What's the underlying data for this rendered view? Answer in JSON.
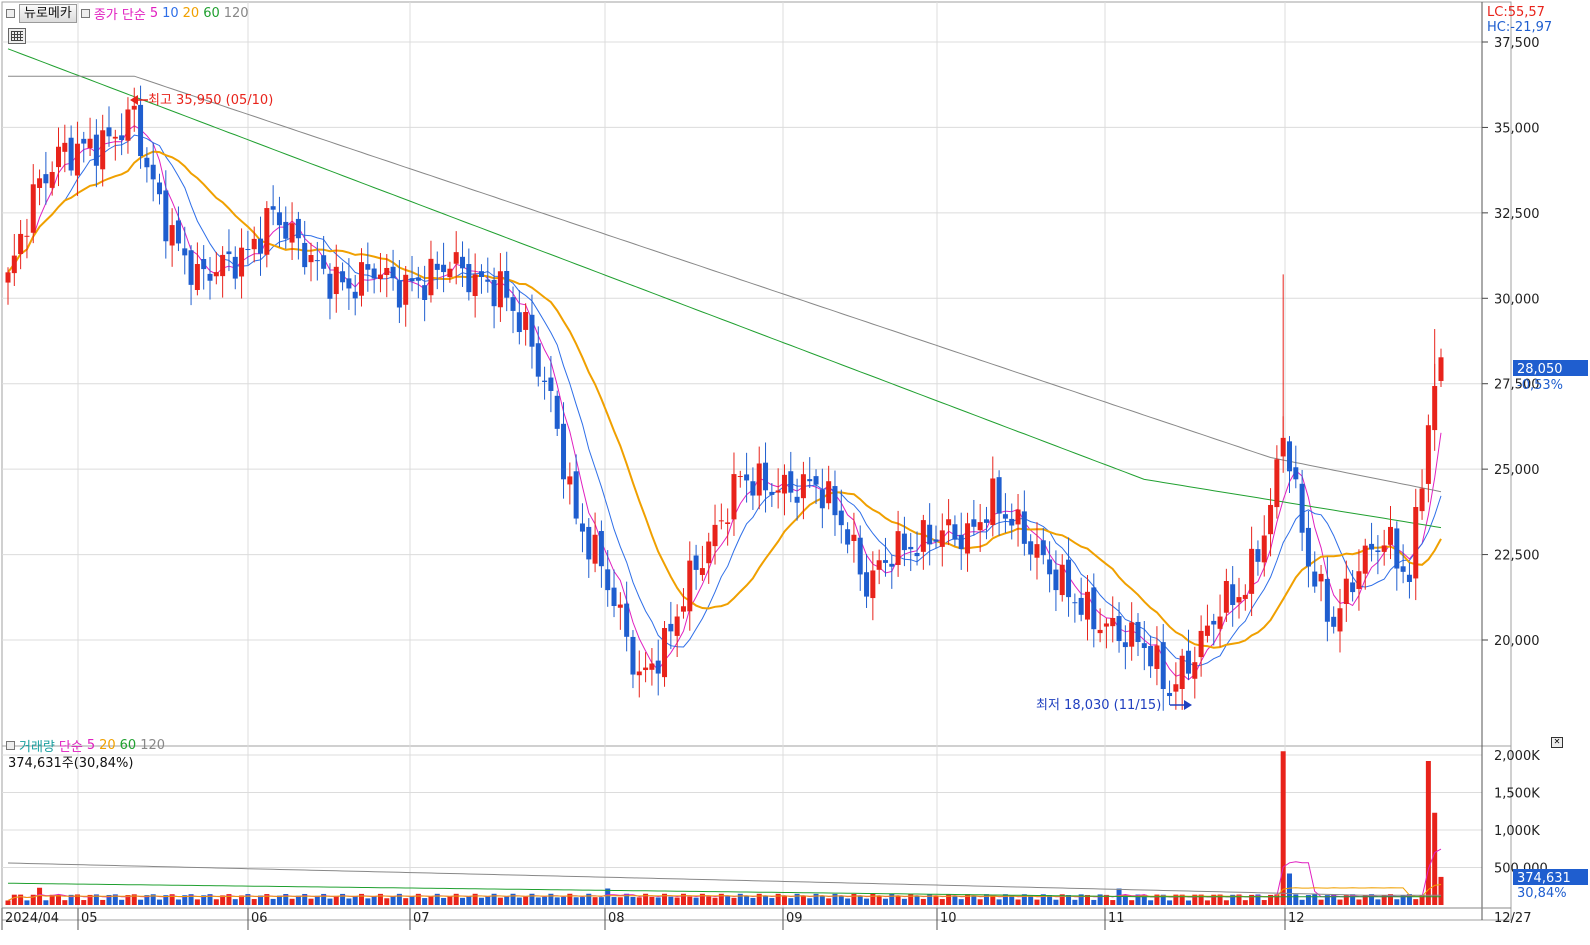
{
  "toolbar": {
    "stock_name": "뉴로메카",
    "indicator": "종가 단순",
    "ma_periods": [
      "5",
      "10",
      "20",
      "60",
      "120"
    ],
    "lc": "LC:55,57",
    "hc": "HC:-21,97"
  },
  "volume_panel": {
    "title": "거래량",
    "indicator": "단순",
    "ma_periods": [
      "5",
      "20",
      "60",
      "120"
    ],
    "info": "374,631주(30,84%)"
  },
  "annotations": {
    "high": "최고 35,950 (05/10)",
    "low": "최저 18,030 (11/15)"
  },
  "price_axis": {
    "ticks": [
      "37,500",
      "35,000",
      "32,500",
      "30,000",
      "27,500",
      "25,000",
      "22,500",
      "20,000"
    ],
    "current": "28,050",
    "change": "-0,53%"
  },
  "volume_axis": {
    "ticks": [
      "2,000K",
      "1,500K",
      "1,000K",
      "500,000"
    ],
    "current": "374,631",
    "ratio": "30,84%"
  },
  "date_axis": {
    "labels": [
      "2024/04",
      "05",
      "06",
      "07",
      "08",
      "09",
      "10",
      "11",
      "12"
    ],
    "end": "12/27"
  },
  "colors": {
    "up": "#e8231b",
    "down": "#1f5ecf",
    "ma5": "#e020c0",
    "ma10": "#2f6fe8",
    "ma20": "#f0a000",
    "ma60": "#20a030",
    "ma120": "#888888"
  },
  "chart_data": {
    "type": "candlestick",
    "period": "2024/04 – 12/27",
    "y_range": [
      17500,
      38500
    ],
    "monthly_closes": [
      {
        "month": "2024/04",
        "close": 31500
      },
      {
        "month": "05",
        "close": 34500
      },
      {
        "month": "06",
        "close": 31200
      },
      {
        "month": "07",
        "close": 30400
      },
      {
        "month": "08",
        "close": 21300
      },
      {
        "month": "09",
        "close": 23000
      },
      {
        "month": "10",
        "close": 22700
      },
      {
        "month": "11",
        "close": 19800
      },
      {
        "month": "12",
        "close": 28050
      }
    ],
    "high": 35950,
    "low": 18030
  }
}
